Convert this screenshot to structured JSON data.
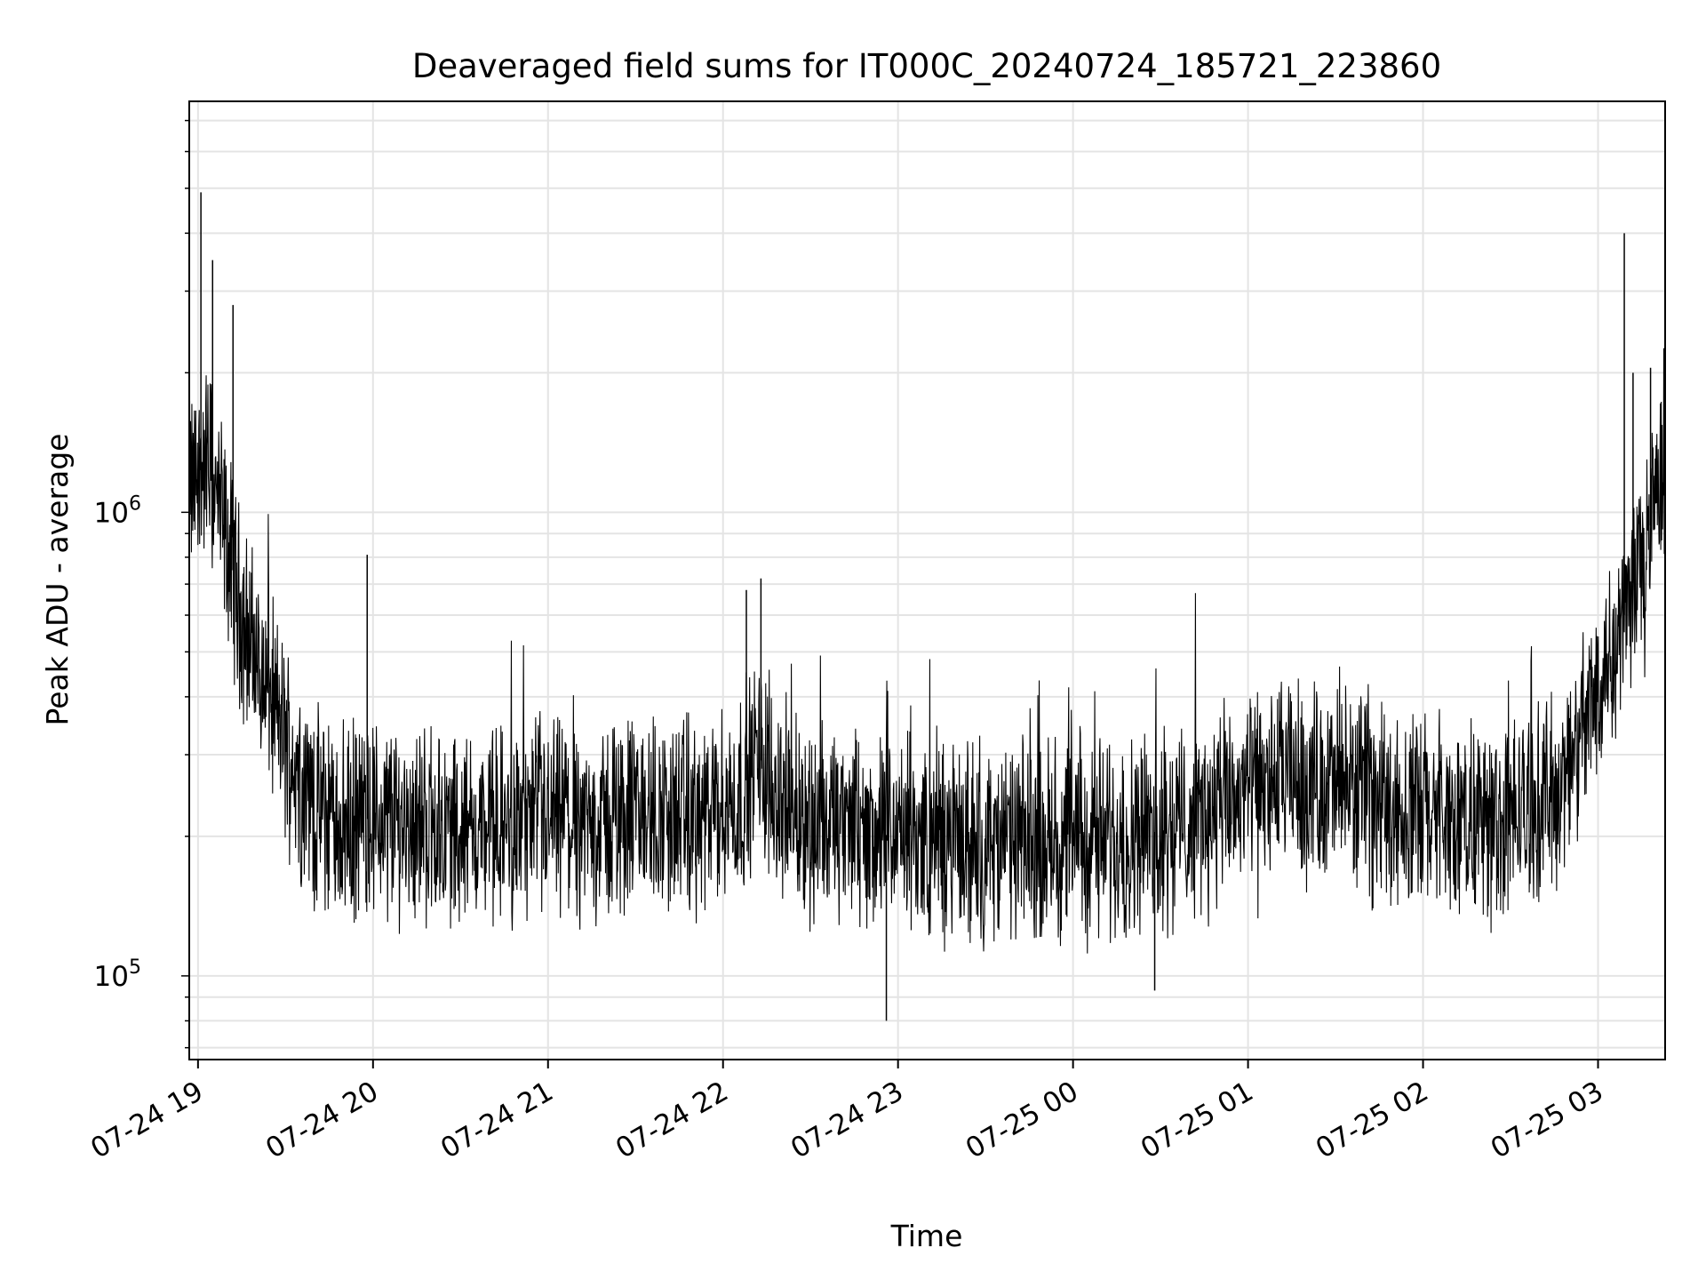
{
  "chart_data": {
    "type": "line",
    "title": "Deaveraged field sums for IT000C_20240724_185721_223860",
    "xlabel": "Time",
    "ylabel": "Peak ADU - average",
    "x_axis": {
      "kind": "datetime",
      "range": [
        "2024-07-24 18:57",
        "2024-07-25 03:23"
      ],
      "ticks": [
        {
          "value": "2024-07-24 19:00",
          "label": "07-24 19"
        },
        {
          "value": "2024-07-24 20:00",
          "label": "07-24 20"
        },
        {
          "value": "2024-07-24 21:00",
          "label": "07-24 21"
        },
        {
          "value": "2024-07-24 22:00",
          "label": "07-24 22"
        },
        {
          "value": "2024-07-24 23:00",
          "label": "07-24 23"
        },
        {
          "value": "2024-07-25 00:00",
          "label": "07-25 00"
        },
        {
          "value": "2024-07-25 01:00",
          "label": "07-25 01"
        },
        {
          "value": "2024-07-25 02:00",
          "label": "07-25 02"
        },
        {
          "value": "2024-07-25 03:00",
          "label": "07-25 03"
        }
      ]
    },
    "y_axis": {
      "scale": "log",
      "range": [
        66000,
        7700000
      ],
      "ticks": [
        {
          "value": 100000,
          "base": "10",
          "exp": "5"
        },
        {
          "value": 1000000,
          "base": "10",
          "exp": "6"
        }
      ]
    },
    "grid": true,
    "line_color": "#000000",
    "series": [
      {
        "time": [
          "2024-07-24 18:57",
          "2024-07-24 19:00",
          "2024-07-24 19:03",
          "2024-07-24 19:06",
          "2024-07-24 19:09",
          "2024-07-24 19:12",
          "2024-07-24 19:15",
          "2024-07-24 19:20",
          "2024-07-24 19:25",
          "2024-07-24 19:30",
          "2024-07-24 19:40",
          "2024-07-24 19:50",
          "2024-07-24 20:00",
          "2024-07-24 20:15",
          "2024-07-24 20:30",
          "2024-07-24 20:45",
          "2024-07-24 21:00",
          "2024-07-24 21:15",
          "2024-07-24 21:30",
          "2024-07-24 21:45",
          "2024-07-24 21:55",
          "2024-07-24 22:05",
          "2024-07-24 22:12",
          "2024-07-24 22:20",
          "2024-07-24 22:30",
          "2024-07-24 22:45",
          "2024-07-24 23:00",
          "2024-07-24 23:15",
          "2024-07-24 23:30",
          "2024-07-24 23:45",
          "2024-07-25 00:00",
          "2024-07-25 00:15",
          "2024-07-25 00:30",
          "2024-07-25 00:45",
          "2024-07-25 01:00",
          "2024-07-25 01:15",
          "2024-07-25 01:30",
          "2024-07-25 01:45",
          "2024-07-25 02:00",
          "2024-07-25 02:15",
          "2024-07-25 02:30",
          "2024-07-25 02:45",
          "2024-07-25 02:55",
          "2024-07-25 03:00",
          "2024-07-25 03:05",
          "2024-07-25 03:10",
          "2024-07-25 03:15",
          "2024-07-25 03:23"
        ],
        "values": [
          1100000,
          1200000,
          1300000,
          1100000,
          900000,
          750000,
          600000,
          480000,
          400000,
          320000,
          230000,
          210000,
          220000,
          215000,
          205000,
          210000,
          215000,
          210000,
          225000,
          220000,
          215000,
          240000,
          300000,
          240000,
          215000,
          205000,
          200000,
          195000,
          190000,
          195000,
          195000,
          200000,
          205000,
          220000,
          250000,
          265000,
          255000,
          240000,
          225000,
          215000,
          220000,
          245000,
          330000,
          430000,
          530000,
          620000,
          850000,
          1100000
        ],
        "spikes": [
          {
            "time": "2024-07-24 19:01",
            "value": 4900000
          },
          {
            "time": "2024-07-24 19:05",
            "value": 3500000
          },
          {
            "time": "2024-07-24 19:12",
            "value": 2800000
          },
          {
            "time": "2024-07-24 19:58",
            "value": 810000
          },
          {
            "time": "2024-07-24 22:08",
            "value": 680000
          },
          {
            "time": "2024-07-24 22:13",
            "value": 720000
          },
          {
            "time": "2024-07-24 22:56",
            "value": 80000
          },
          {
            "time": "2024-07-25 00:28",
            "value": 93000
          },
          {
            "time": "2024-07-25 03:09",
            "value": 4000000
          },
          {
            "time": "2024-07-25 03:12",
            "value": 2000000
          },
          {
            "time": "2024-07-25 03:18",
            "value": 2050000
          }
        ]
      }
    ]
  }
}
